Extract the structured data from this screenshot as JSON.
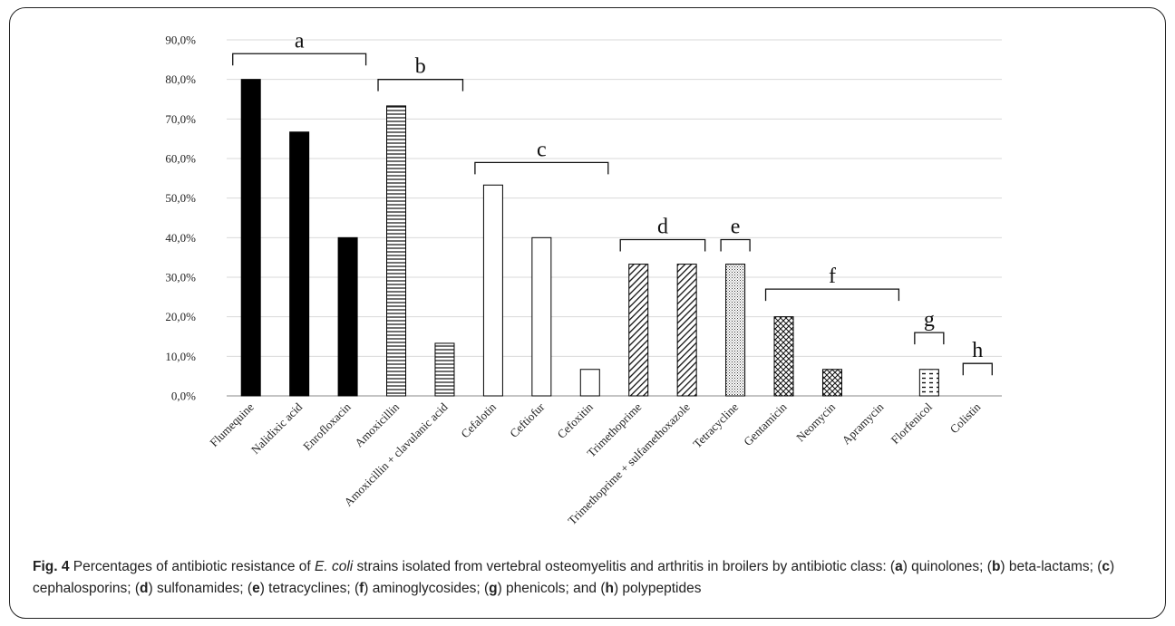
{
  "chart_data": {
    "type": "bar",
    "title": "",
    "xlabel": "",
    "ylabel": "",
    "ylim": [
      0,
      90
    ],
    "y_ticks": [
      "0,0%",
      "10,0%",
      "20,0%",
      "30,0%",
      "40,0%",
      "50,0%",
      "60,0%",
      "70,0%",
      "80,0%",
      "90,0%"
    ],
    "grid": true,
    "categories": [
      "Flumequine",
      "Nalidixic acid",
      "Enrofloxacin",
      "Amoxicillin",
      "Amoxicillin + clavulanic acid",
      "Cefalotin",
      "Ceftiofur",
      "Cefoxitin",
      "Trimethoprime",
      "Trimethoprime + sulfamethoxazole",
      "Tetracycline",
      "Gentamicin",
      "Neomycin",
      "Apramycin",
      "Florfenicol",
      "Colistin"
    ],
    "values": [
      80.0,
      66.7,
      40.0,
      73.3,
      13.3,
      53.3,
      40.0,
      6.7,
      33.3,
      33.3,
      33.3,
      20.0,
      6.7,
      0.0,
      6.7,
      0.0
    ],
    "patterns": [
      "solid",
      "solid",
      "solid",
      "horizontal",
      "horizontal",
      "empty",
      "empty",
      "empty",
      "diagonal",
      "diagonal",
      "dots",
      "crosshatch",
      "crosshatch",
      "crosshatch",
      "dash",
      "empty"
    ],
    "groups": [
      {
        "label": "a",
        "from": 0,
        "to": 2,
        "level": 86.5
      },
      {
        "label": "b",
        "from": 3,
        "to": 4,
        "level": 80
      },
      {
        "label": "c",
        "from": 5,
        "to": 7,
        "level": 59
      },
      {
        "label": "d",
        "from": 8,
        "to": 9,
        "level": 39.5
      },
      {
        "label": "e",
        "from": 10,
        "to": 10,
        "level": 39.5
      },
      {
        "label": "f",
        "from": 11,
        "to": 13,
        "level": 27
      },
      {
        "label": "g",
        "from": 14,
        "to": 14,
        "level": 16
      },
      {
        "label": "h",
        "from": 15,
        "to": 15,
        "level": 8.2
      }
    ]
  },
  "caption": {
    "label": "Fig. 4",
    "parts": [
      {
        "t": " Percentages of antibiotic resistance of ",
        "s": "n"
      },
      {
        "t": "E. coli",
        "s": "i"
      },
      {
        "t": " strains isolated from vertebral osteomyelitis and arthritis in broilers by antibiotic class: (",
        "s": "n"
      },
      {
        "t": "a",
        "s": "b"
      },
      {
        "t": ") quinolones; (",
        "s": "n"
      },
      {
        "t": "b",
        "s": "b"
      },
      {
        "t": ") beta-lactams; (",
        "s": "n"
      },
      {
        "t": "c",
        "s": "b"
      },
      {
        "t": ") cephalosporins; (",
        "s": "n"
      },
      {
        "t": "d",
        "s": "b"
      },
      {
        "t": ") sulfonamides; (",
        "s": "n"
      },
      {
        "t": "e",
        "s": "b"
      },
      {
        "t": ") tetracyclines; (",
        "s": "n"
      },
      {
        "t": "f",
        "s": "b"
      },
      {
        "t": ") aminoglycosides; (",
        "s": "n"
      },
      {
        "t": "g",
        "s": "b"
      },
      {
        "t": ") phenicols; and (",
        "s": "n"
      },
      {
        "t": "h",
        "s": "b"
      },
      {
        "t": ") polypeptides",
        "s": "n"
      }
    ]
  }
}
